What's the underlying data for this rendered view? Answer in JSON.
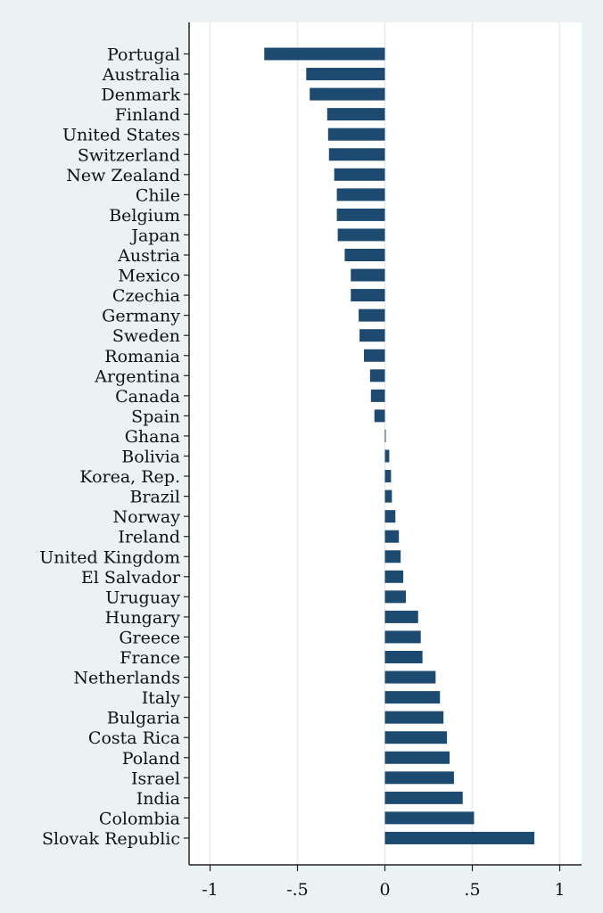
{
  "chart_data": {
    "type": "bar",
    "orientation": "horizontal",
    "title": "",
    "xlabel": "",
    "ylabel": "",
    "xlim": [
      -1.05,
      1.1
    ],
    "grid": "vertical",
    "bar_color": "#1c4a70",
    "background_color": "#eaf2f3",
    "plot_background_color": "#ffffff",
    "grid_color": "#e3ecee",
    "x_ticks": [
      {
        "value": -1,
        "label": "-1"
      },
      {
        "value": -0.5,
        "label": "-.5"
      },
      {
        "value": 0,
        "label": "0"
      },
      {
        "value": 0.5,
        "label": ".5"
      },
      {
        "value": 1,
        "label": "1"
      }
    ],
    "categories": [
      "Portugal",
      "Australia",
      "Denmark",
      "Finland",
      "United States",
      "Switzerland",
      "New Zealand",
      "Chile",
      "Belgium",
      "Japan",
      "Austria",
      "Mexico",
      "Czechia",
      "Germany",
      "Sweden",
      "Romania",
      "Argentina",
      "Canada",
      "Spain",
      "Ghana",
      "Bolivia",
      "Korea, Rep.",
      "Brazil",
      "Norway",
      "Ireland",
      "United Kingdom",
      "El Salvador",
      "Uruguay",
      "Hungary",
      "Greece",
      "France",
      "Netherlands",
      "Italy",
      "Bulgaria",
      "Costa Rica",
      "Poland",
      "Israel",
      "India",
      "Colombia",
      "Slovak Republic"
    ],
    "values": [
      -0.69,
      -0.45,
      -0.43,
      -0.33,
      -0.325,
      -0.32,
      -0.29,
      -0.275,
      -0.275,
      -0.27,
      -0.23,
      -0.195,
      -0.195,
      -0.15,
      -0.145,
      -0.12,
      -0.085,
      -0.08,
      -0.06,
      0.005,
      0.025,
      0.035,
      0.04,
      0.06,
      0.08,
      0.09,
      0.105,
      0.12,
      0.19,
      0.205,
      0.215,
      0.29,
      0.315,
      0.335,
      0.355,
      0.37,
      0.395,
      0.445,
      0.51,
      0.855
    ]
  }
}
